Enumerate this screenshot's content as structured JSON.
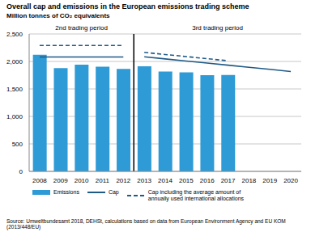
{
  "chart_data": {
    "type": "bar",
    "title": "Overall cap and emissions in the European emissions trading scheme",
    "subtitle": "Million tonnes of CO₂ equivalents",
    "categories": [
      "2008",
      "2009",
      "2010",
      "2011",
      "2012",
      "2013",
      "2014",
      "2015",
      "2016",
      "2017",
      "2018",
      "2019",
      "2020"
    ],
    "series": [
      {
        "name": "Emissions",
        "type": "bar",
        "color": "#2e9bd6",
        "values": [
          2120,
          1880,
          1940,
          1905,
          1865,
          1910,
          1815,
          1800,
          1750,
          1755,
          null,
          null,
          null
        ]
      },
      {
        "name": "Cap",
        "type": "line",
        "color": "#1f5a87",
        "line_style": "solid",
        "values": [
          2080,
          2080,
          2080,
          2080,
          2080,
          2084,
          2046,
          2008,
          1970,
          1932,
          1894,
          1856,
          1816
        ]
      },
      {
        "name": "Cap including the average amount of annually used international allocations",
        "type": "line",
        "color": "#1f5a87",
        "line_style": "dashed",
        "values": [
          2290,
          2290,
          2290,
          2290,
          2290,
          2165,
          2126,
          2088,
          2050,
          2012,
          null,
          null,
          null
        ]
      }
    ],
    "ylim": [
      0,
      2500
    ],
    "yticks": [
      0,
      500,
      {
        "value": 1000,
        "label": "1,000"
      },
      {
        "value": 1500,
        "label": "1,500"
      },
      {
        "value": 2000,
        "label": "2,000"
      },
      {
        "value": 2500,
        "label": "2,500"
      }
    ],
    "grid": true,
    "legend": "bottom",
    "annotations": [
      {
        "text": "2nd trading period",
        "start": "2008",
        "end": "2012"
      },
      {
        "text": "3rd trading period",
        "start": "2013",
        "end": "2020"
      }
    ],
    "source": "Source: Umweltbundesamt 2018, DEHSt, calculations based on data from European Environment Agency and EU KOM (2013/448/EU)"
  }
}
